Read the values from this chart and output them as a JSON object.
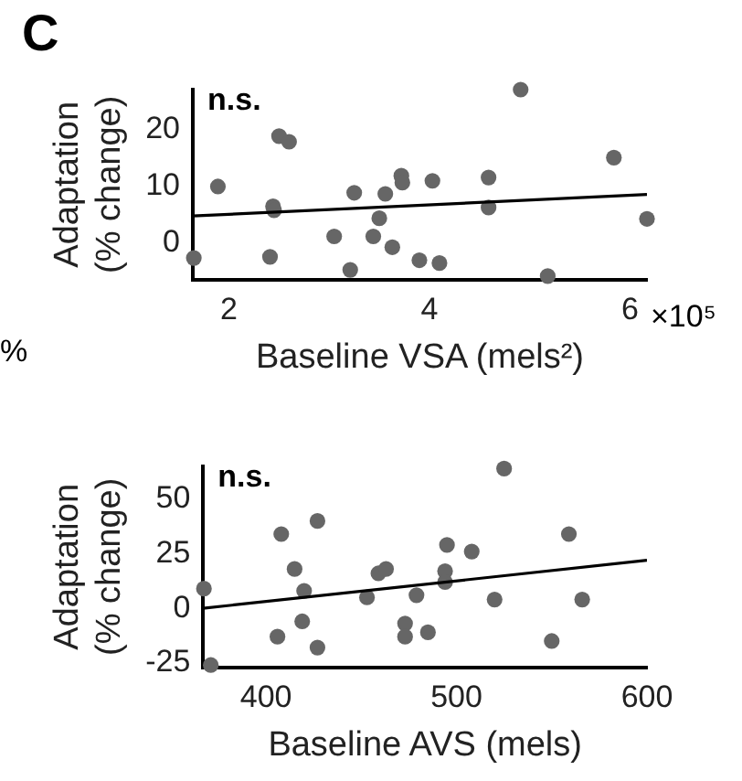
{
  "chart_data": [
    {
      "type": "scatter",
      "title": "C",
      "xlabel": "Baseline VSA (mels²)",
      "ylabel": "Adaptation\n(% change)",
      "annotations": [
        "n.s.",
        "×10⁵",
        "%"
      ],
      "xlim": [
        1.64,
        6.17
      ],
      "ylim": [
        -6.5,
        27
      ],
      "xticks": [
        2,
        4,
        6
      ],
      "yticks": [
        0,
        10,
        20
      ],
      "grid": false,
      "legend": false,
      "marker": "circle",
      "series": [
        {
          "type": "scatter",
          "color": "#666666",
          "x": [
            1.65,
            1.89,
            2.44,
            2.45,
            2.41,
            2.5,
            2.6,
            3.05,
            3.21,
            3.25,
            3.44,
            3.5,
            3.56,
            3.63,
            3.72,
            3.73,
            3.9,
            4.03,
            4.1,
            4.59,
            4.59,
            4.91,
            5.18,
            5.84,
            6.17
          ],
          "values": [
            -2.7,
            9.9,
            6.4,
            5.7,
            -2.5,
            18.8,
            17.8,
            1.1,
            -4.8,
            8.8,
            1.1,
            4.3,
            8.6,
            -0.8,
            11.8,
            10.6,
            -3.1,
            10.9,
            -3.6,
            11.5,
            6.2,
            27,
            -5.9,
            15,
            4.2
          ]
        },
        {
          "type": "line",
          "color": "#000000",
          "marker": "none",
          "x": [
            1.64,
            6.17
          ],
          "values": [
            4.7,
            8.5
          ]
        }
      ]
    },
    {
      "type": "scatter",
      "xlabel": "Baseline AVS (mels)",
      "ylabel": "Adaptation\n(% change)",
      "annotations": [
        "n.s."
      ],
      "xlim": [
        367,
        600
      ],
      "ylim": [
        -27,
        65
      ],
      "xticks": [
        400,
        500,
        600
      ],
      "yticks": [
        -25,
        0,
        25,
        50
      ],
      "grid": false,
      "legend": false,
      "marker": "circle",
      "series": [
        {
          "type": "scatter",
          "color": "#666666",
          "x": [
            367.4,
            371,
            406,
            408,
            415,
            419,
            420,
            427,
            427,
            453,
            459,
            463,
            473,
            473,
            479,
            485,
            494,
            494,
            495,
            508,
            520,
            525,
            550,
            559,
            566
          ],
          "values": [
            9,
            -26,
            -13,
            34,
            18,
            -6,
            8,
            -18,
            40,
            5,
            16,
            18,
            -7,
            -13,
            6,
            -11,
            17,
            12,
            29,
            26,
            4,
            64,
            -15,
            34,
            4
          ]
        },
        {
          "type": "line",
          "color": "#000000",
          "marker": "none",
          "x": [
            367,
            600
          ],
          "values": [
            0,
            22
          ]
        }
      ]
    }
  ]
}
